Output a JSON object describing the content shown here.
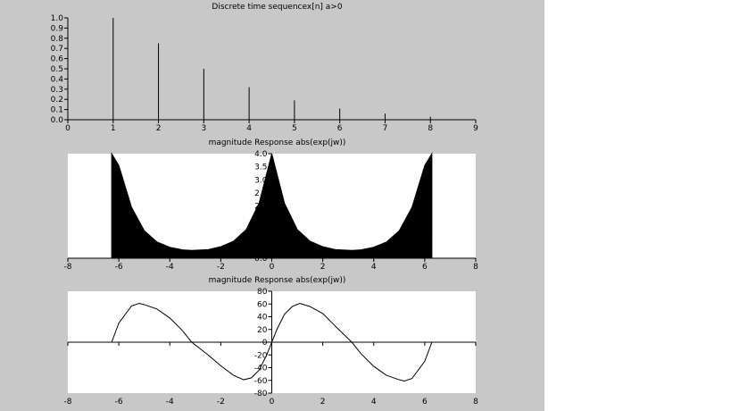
{
  "window": {
    "background": "#c8c8c8"
  },
  "chart_data": [
    {
      "type": "bar",
      "style": "stem",
      "title": "Discrete time sequencex[n]  a>0",
      "xlabel": "",
      "ylabel": "",
      "x": [
        1,
        2,
        3,
        4,
        5,
        6,
        7,
        8
      ],
      "values": [
        1.0,
        0.75,
        0.5,
        0.32,
        0.19,
        0.11,
        0.06,
        0.03
      ],
      "xlim": [
        0,
        9
      ],
      "ylim": [
        0,
        1
      ],
      "xticks": [
        "0",
        "1",
        "2",
        "3",
        "4",
        "5",
        "6",
        "7",
        "8",
        "9"
      ],
      "yticks": [
        "0.0",
        "0.1",
        "0.2",
        "0.3",
        "0.4",
        "0.5",
        "0.6",
        "0.7",
        "0.8",
        "0.9",
        "1.0"
      ],
      "color": "#000000",
      "grid": false
    },
    {
      "type": "area",
      "title": "magnitude Response abs(exp(jw))",
      "xlabel": "",
      "ylabel": "",
      "x": [
        -6.28,
        -6.0,
        -5.5,
        -5.0,
        -4.5,
        -4.0,
        -3.5,
        -3.14,
        -2.5,
        -2.0,
        -1.5,
        -1.0,
        -0.5,
        0.0,
        0.5,
        1.0,
        1.5,
        2.0,
        2.5,
        3.14,
        3.5,
        4.0,
        4.5,
        5.0,
        5.5,
        6.0,
        6.28
      ],
      "values": [
        4.0,
        3.55,
        1.95,
        1.05,
        0.62,
        0.42,
        0.32,
        0.3,
        0.33,
        0.44,
        0.65,
        1.1,
        2.1,
        4.0,
        2.1,
        1.1,
        0.65,
        0.44,
        0.33,
        0.3,
        0.32,
        0.42,
        0.62,
        1.05,
        1.95,
        3.55,
        4.0
      ],
      "xlim": [
        -8,
        8
      ],
      "ylim": [
        0,
        4
      ],
      "xticks": [
        "-8",
        "-6",
        "-4",
        "-2",
        "0",
        "2",
        "4",
        "6",
        "8"
      ],
      "yticks": [
        "0.0",
        "0.5",
        "1.0",
        "1.5",
        "2.0",
        "2.5",
        "3.0",
        "3.5",
        "4.0"
      ],
      "color": "#000000",
      "grid": false
    },
    {
      "type": "line",
      "title": "magnitude Response abs(exp(jw))",
      "xlabel": "",
      "ylabel": "",
      "x": [
        -6.28,
        -6.0,
        -5.5,
        -5.2,
        -5.0,
        -4.5,
        -4.0,
        -3.5,
        -3.14,
        -2.5,
        -2.0,
        -1.5,
        -1.1,
        -0.8,
        -0.5,
        -0.2,
        0.0,
        0.2,
        0.5,
        0.8,
        1.1,
        1.5,
        2.0,
        2.5,
        3.14,
        3.5,
        4.0,
        4.5,
        5.0,
        5.2,
        5.5,
        6.0,
        6.28
      ],
      "values": [
        0,
        30,
        57,
        61,
        59,
        52,
        38,
        18,
        0,
        -20,
        -37,
        -52,
        -59,
        -56,
        -44,
        -20,
        0,
        20,
        44,
        56,
        61,
        56,
        45,
        25,
        0,
        -18,
        -38,
        -52,
        -59,
        -61,
        -57,
        -30,
        0
      ],
      "xlim": [
        -8,
        8
      ],
      "ylim": [
        -80,
        80
      ],
      "xticks": [
        "-8",
        "-6",
        "-4",
        "-2",
        "0",
        "2",
        "4",
        "6",
        "8"
      ],
      "yticks": [
        "-80",
        "-60",
        "-40",
        "-20",
        "0",
        "20",
        "40",
        "60",
        "80"
      ],
      "color": "#000000",
      "grid": false
    }
  ]
}
